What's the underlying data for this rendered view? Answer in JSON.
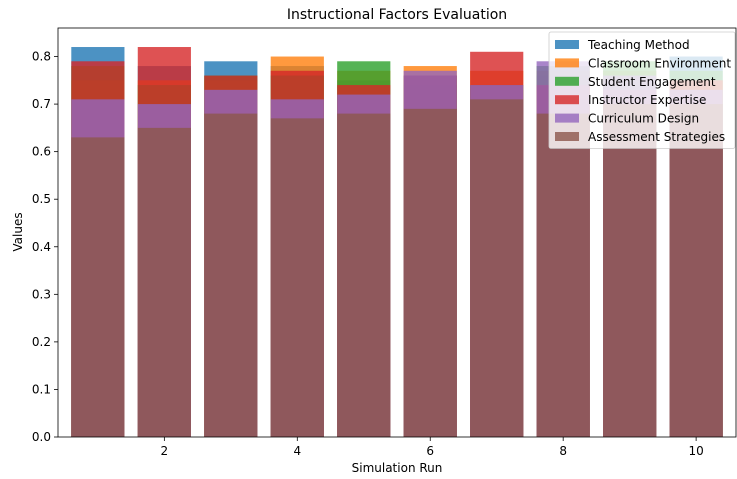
{
  "chart_data": {
    "type": "bar",
    "title": "Instructional Factors Evaluation",
    "xlabel": "Simulation Run",
    "ylabel": "Values",
    "x": [
      1,
      2,
      3,
      4,
      5,
      6,
      7,
      8,
      9,
      10
    ],
    "xticks": [
      2,
      4,
      6,
      8,
      10
    ],
    "xlim": [
      0.4,
      10.6
    ],
    "ylim": [
      0,
      0.86
    ],
    "yticks": [
      0.0,
      0.1,
      0.2,
      0.3,
      0.4,
      0.5,
      0.6,
      0.7,
      0.8
    ],
    "bar_width": 0.8,
    "bar_alpha": 0.8,
    "legend_position": "top-right",
    "grid": false,
    "series": [
      {
        "name": "Teaching Method",
        "color": "#1f77b4",
        "values": [
          0.82,
          0.78,
          0.79,
          0.78,
          0.75,
          0.74,
          0.73,
          0.76,
          0.77,
          0.8
        ]
      },
      {
        "name": "Classroom Environment",
        "color": "#ff7f0e",
        "values": [
          0.75,
          0.75,
          0.75,
          0.8,
          0.77,
          0.78,
          0.77,
          0.77,
          0.77,
          0.75
        ]
      },
      {
        "name": "Student Engagement",
        "color": "#2ca02c",
        "values": [
          0.78,
          0.74,
          0.76,
          0.76,
          0.79,
          0.76,
          0.74,
          0.78,
          0.79,
          0.77
        ]
      },
      {
        "name": "Instructor Expertise",
        "color": "#d62728",
        "values": [
          0.79,
          0.82,
          0.76,
          0.77,
          0.74,
          0.76,
          0.81,
          0.74,
          0.73,
          0.75
        ]
      },
      {
        "name": "Curriculum Design",
        "color": "#9467bd",
        "values": [
          0.71,
          0.7,
          0.73,
          0.71,
          0.72,
          0.77,
          0.74,
          0.79,
          0.76,
          0.73
        ]
      },
      {
        "name": "Assessment Strategies",
        "color": "#8c564b",
        "values": [
          0.63,
          0.65,
          0.68,
          0.67,
          0.68,
          0.69,
          0.71,
          0.68,
          0.7,
          0.7
        ]
      }
    ]
  }
}
